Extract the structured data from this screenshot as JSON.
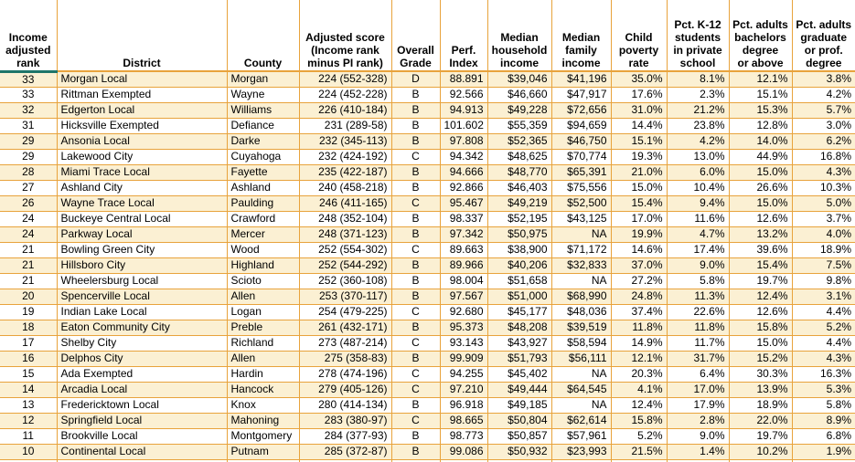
{
  "colors": {
    "border_gold": "#E8A33C",
    "rank_header_underline_teal": "#1E7569",
    "row_stripe_cream": "#FBF0D3",
    "row_plain_white": "#FFFFFF",
    "text": "#000000"
  },
  "table": {
    "columns": [
      "Income\nadjusted\nrank",
      "District",
      "County",
      "Adjusted score\n(Income rank\nminus PI rank)",
      "Overall\nGrade",
      "Perf.\nIndex",
      "Median\nhousehold\nincome",
      "Median\nfamily\nincome",
      "Child\npoverty\nrate",
      "Pct. K-12\nstudents\nin private\nschool",
      "Pct. adults\nbachelors\ndegree\nor above",
      "Pct. adults\ngraduate\nor prof.\ndegree"
    ],
    "rows": [
      [
        "33",
        "Morgan Local",
        "Morgan",
        "224 (552-328)",
        "D",
        "88.891",
        "$39,046",
        "$41,196",
        "35.0%",
        "8.1%",
        "12.1%",
        "3.8%"
      ],
      [
        "33",
        "Rittman Exempted",
        "Wayne",
        "224 (452-228)",
        "B",
        "92.566",
        "$46,660",
        "$47,917",
        "17.6%",
        "2.3%",
        "15.1%",
        "4.2%"
      ],
      [
        "32",
        "Edgerton Local",
        "Williams",
        "226 (410-184)",
        "B",
        "94.913",
        "$49,228",
        "$72,656",
        "31.0%",
        "21.2%",
        "15.3%",
        "5.7%"
      ],
      [
        "31",
        "Hicksville Exempted",
        "Defiance",
        "231 (289-58)",
        "B",
        "101.602",
        "$55,359",
        "$94,659",
        "14.4%",
        "23.8%",
        "12.8%",
        "3.0%"
      ],
      [
        "29",
        "Ansonia Local",
        "Darke",
        "232 (345-113)",
        "B",
        "97.808",
        "$52,365",
        "$46,750",
        "15.1%",
        "4.2%",
        "14.0%",
        "6.2%"
      ],
      [
        "29",
        "Lakewood City",
        "Cuyahoga",
        "232 (424-192)",
        "C",
        "94.342",
        "$48,625",
        "$70,774",
        "19.3%",
        "13.0%",
        "44.9%",
        "16.8%"
      ],
      [
        "28",
        "Miami Trace Local",
        "Fayette",
        "235 (422-187)",
        "B",
        "94.666",
        "$48,770",
        "$65,391",
        "21.0%",
        "6.0%",
        "15.0%",
        "4.3%"
      ],
      [
        "27",
        "Ashland City",
        "Ashland",
        "240 (458-218)",
        "B",
        "92.866",
        "$46,403",
        "$75,556",
        "15.0%",
        "10.4%",
        "26.6%",
        "10.3%"
      ],
      [
        "26",
        "Wayne Trace Local",
        "Paulding",
        "246 (411-165)",
        "C",
        "95.467",
        "$49,219",
        "$52,500",
        "15.4%",
        "9.4%",
        "15.0%",
        "5.0%"
      ],
      [
        "24",
        "Buckeye Central Local",
        "Crawford",
        "248 (352-104)",
        "B",
        "98.337",
        "$52,195",
        "$43,125",
        "17.0%",
        "11.6%",
        "12.6%",
        "3.7%"
      ],
      [
        "24",
        "Parkway Local",
        "Mercer",
        "248 (371-123)",
        "B",
        "97.342",
        "$50,975",
        "NA",
        "19.9%",
        "4.7%",
        "13.2%",
        "4.0%"
      ],
      [
        "21",
        "Bowling Green City",
        "Wood",
        "252 (554-302)",
        "C",
        "89.663",
        "$38,900",
        "$71,172",
        "14.6%",
        "17.4%",
        "39.6%",
        "18.9%"
      ],
      [
        "21",
        "Hillsboro City",
        "Highland",
        "252 (544-292)",
        "B",
        "89.966",
        "$40,206",
        "$32,833",
        "37.0%",
        "9.0%",
        "15.4%",
        "7.5%"
      ],
      [
        "21",
        "Wheelersburg Local",
        "Scioto",
        "252 (360-108)",
        "B",
        "98.004",
        "$51,658",
        "NA",
        "27.2%",
        "5.8%",
        "19.7%",
        "9.8%"
      ],
      [
        "20",
        "Spencerville Local",
        "Allen",
        "253 (370-117)",
        "B",
        "97.567",
        "$51,000",
        "$68,990",
        "24.8%",
        "11.3%",
        "12.4%",
        "3.1%"
      ],
      [
        "19",
        "Indian Lake Local",
        "Logan",
        "254 (479-225)",
        "C",
        "92.680",
        "$45,177",
        "$48,036",
        "37.4%",
        "22.6%",
        "12.6%",
        "4.4%"
      ],
      [
        "18",
        "Eaton Community City",
        "Preble",
        "261 (432-171)",
        "B",
        "95.373",
        "$48,208",
        "$39,519",
        "11.8%",
        "11.8%",
        "15.8%",
        "5.2%"
      ],
      [
        "17",
        "Shelby City",
        "Richland",
        "273 (487-214)",
        "C",
        "93.143",
        "$43,927",
        "$58,594",
        "14.9%",
        "11.7%",
        "15.0%",
        "4.4%"
      ],
      [
        "16",
        "Delphos City",
        "Allen",
        "275 (358-83)",
        "B",
        "99.909",
        "$51,793",
        "$56,111",
        "12.1%",
        "31.7%",
        "15.2%",
        "4.3%"
      ],
      [
        "15",
        "Ada Exempted",
        "Hardin",
        "278 (474-196)",
        "C",
        "94.255",
        "$45,402",
        "NA",
        "20.3%",
        "6.4%",
        "30.3%",
        "16.3%"
      ],
      [
        "14",
        "Arcadia Local",
        "Hancock",
        "279 (405-126)",
        "C",
        "97.210",
        "$49,444",
        "$64,545",
        "4.1%",
        "17.0%",
        "13.9%",
        "5.3%"
      ],
      [
        "13",
        "Fredericktown Local",
        "Knox",
        "280 (414-134)",
        "B",
        "96.918",
        "$49,185",
        "NA",
        "12.4%",
        "17.9%",
        "18.9%",
        "5.8%"
      ],
      [
        "12",
        "Springfield Local",
        "Mahoning",
        "283 (380-97)",
        "C",
        "98.665",
        "$50,804",
        "$62,614",
        "15.8%",
        "2.8%",
        "22.0%",
        "8.9%"
      ],
      [
        "11",
        "Brookville Local",
        "Montgomery",
        "284 (377-93)",
        "B",
        "98.773",
        "$50,857",
        "$57,961",
        "5.2%",
        "9.0%",
        "19.7%",
        "6.8%"
      ],
      [
        "10",
        "Continental Local",
        "Putnam",
        "285 (372-87)",
        "B",
        "99.086",
        "$50,932",
        "$23,993",
        "21.5%",
        "1.4%",
        "10.2%",
        "1.9%"
      ]
    ]
  }
}
